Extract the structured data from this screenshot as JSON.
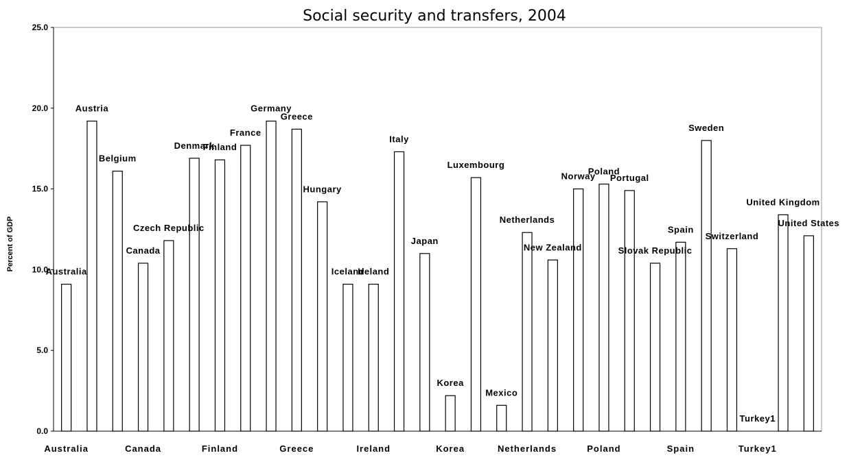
{
  "chart_data": {
    "type": "bar",
    "title": "Social security and transfers, 2004",
    "xlabel": "",
    "ylabel": "Percent of GDP",
    "ylim": [
      0,
      25
    ],
    "yticks": [
      "0.0",
      "5.0",
      "10.0",
      "15.0",
      "20.0",
      "25.0"
    ],
    "grid": false,
    "legend": "none",
    "categories": [
      "Australia",
      "Austria",
      "Belgium",
      "Canada",
      "Czech Republic",
      "Denmark",
      "Finland",
      "France",
      "Germany",
      "Greece",
      "Hungary",
      "Iceland",
      "Ireland",
      "Italy",
      "Japan",
      "Korea",
      "Luxembourg",
      "Mexico",
      "Netherlands",
      "New Zealand",
      "Norway",
      "Poland",
      "Portugal",
      "Slovak Republic",
      "Spain",
      "Sweden",
      "Switzerland",
      "Turkey",
      "United Kingdom",
      "United States"
    ],
    "values": [
      9.1,
      19.2,
      16.1,
      10.4,
      11.8,
      16.9,
      16.8,
      17.7,
      19.2,
      18.7,
      14.2,
      9.1,
      9.1,
      17.3,
      11.0,
      2.2,
      15.7,
      1.6,
      12.3,
      10.6,
      15.0,
      15.3,
      14.9,
      10.4,
      11.7,
      18.0,
      11.3,
      0.0,
      13.4,
      12.1
    ],
    "data_labels": [
      "Australia",
      "Austria",
      "Belgium",
      "Canada",
      "Czech Republic",
      "Denmark",
      "Finland",
      "France",
      "Germany",
      "Greece",
      "Hungary",
      "Iceland",
      "Ireland",
      "Italy",
      "Japan",
      "Korea",
      "Luxembourg",
      "Mexico",
      "Netherlands",
      "New Zealand",
      "Norway",
      "Poland",
      "Portugal",
      "Slovak Republic",
      "Spain",
      "Sweden",
      "Switzerland",
      "Turkey1",
      "United Kingdom",
      "United States"
    ],
    "x_tick_labels": [
      "Australia",
      "Canada",
      "Finland",
      "Greece",
      "Ireland",
      "Korea",
      "Netherlands",
      "Poland",
      "Spain",
      "Turkey1"
    ]
  }
}
